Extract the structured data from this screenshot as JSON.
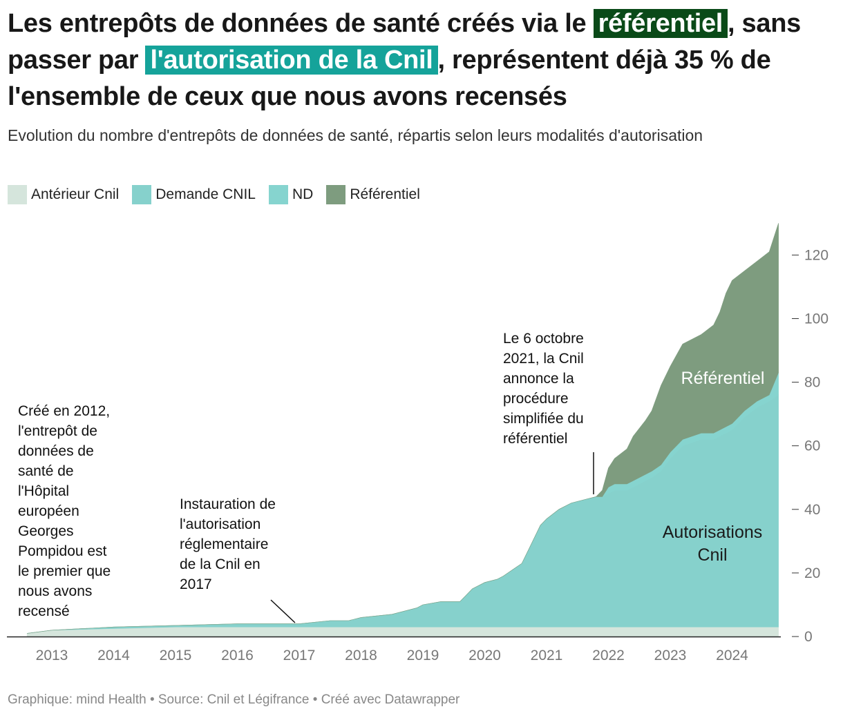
{
  "title": {
    "part1": "Les entrepôts de données de santé créés via le ",
    "hl_ref": "référentiel",
    "part2": ", sans passer par ",
    "hl_cnil": "l'autorisation de la Cnil",
    "part3": ", représentent déjà 35 % de l'ensemble de ceux que nous avons recensés"
  },
  "subtitle": "Evolution du nombre d'entrepôts de données de santé, répartis selon leurs modalités d'autorisation",
  "footer": "Graphique: mind Health • Source: Cnil et Légifrance • Créé avec Datawrapper",
  "colors": {
    "anterieur": "#d5e5dc",
    "demande": "#86d1cc",
    "nd": "#86d4cf",
    "referentiel": "#7e9c7f",
    "hl_ref": "#0a4a18",
    "hl_cnil": "#15a39a"
  },
  "chart_data": {
    "type": "area",
    "stacked": true,
    "legend": [
      "Antérieur Cnil",
      "Demande CNIL",
      "ND",
      "Référentiel"
    ],
    "legend_position": "top-left",
    "x_ticks": [
      "2013",
      "2014",
      "2015",
      "2016",
      "2017",
      "2018",
      "2019",
      "2020",
      "2021",
      "2022",
      "2023",
      "2024"
    ],
    "y_ticks": [
      0,
      20,
      40,
      60,
      80,
      100,
      120
    ],
    "ylim": [
      0,
      130
    ],
    "y_axis_position": "right",
    "grid": false,
    "x": [
      2012.6,
      2013.0,
      2014.0,
      2015.0,
      2016.0,
      2017.0,
      2017.5,
      2017.8,
      2018.0,
      2018.5,
      2018.9,
      2019.0,
      2019.3,
      2019.5,
      2019.6,
      2019.7,
      2019.8,
      2020.0,
      2020.2,
      2020.3,
      2020.45,
      2020.6,
      2020.7,
      2020.9,
      2021.0,
      2021.2,
      2021.4,
      2021.6,
      2021.8,
      2021.9,
      2022.0,
      2022.1,
      2022.3,
      2022.4,
      2022.6,
      2022.7,
      2022.85,
      2023.0,
      2023.2,
      2023.5,
      2023.7,
      2023.8,
      2023.9,
      2024.0,
      2024.2,
      2024.4,
      2024.6,
      2024.75
    ],
    "series": [
      {
        "name": "Antérieur Cnil",
        "values": [
          1,
          2,
          2.5,
          3,
          3,
          3,
          3,
          3,
          3,
          3,
          3,
          3,
          3,
          3,
          3,
          3,
          3,
          3,
          3,
          3,
          3,
          3,
          3,
          3,
          3,
          3,
          3,
          3,
          3,
          3,
          3,
          3,
          3,
          3,
          3,
          3,
          3,
          3,
          3,
          3,
          3,
          3,
          3,
          3,
          3,
          3,
          3,
          3
        ]
      },
      {
        "name": "Demande CNIL",
        "values": [
          0,
          0,
          0.5,
          0.5,
          1,
          1,
          2,
          2,
          3,
          4,
          6,
          7,
          8,
          8,
          8,
          10,
          12,
          14,
          15,
          16,
          18,
          20,
          24,
          32,
          34,
          37,
          39,
          40,
          41,
          41,
          42,
          43,
          43,
          44,
          46,
          47,
          49,
          53,
          57,
          59,
          59,
          60,
          61,
          62,
          66,
          69,
          71,
          73
        ]
      },
      {
        "name": "ND",
        "values": [
          0,
          0,
          0,
          0,
          0,
          0,
          0,
          0,
          0,
          0,
          0,
          0,
          0,
          0,
          0,
          0,
          0,
          0,
          0,
          0,
          0,
          0,
          0,
          0,
          0,
          0,
          0,
          0,
          0,
          0,
          2,
          2,
          2,
          2,
          2,
          2,
          2,
          2,
          2,
          2,
          2,
          2,
          2,
          2,
          2,
          2,
          2,
          7
        ]
      },
      {
        "name": "Référentiel",
        "values": [
          0,
          0,
          0,
          0,
          0,
          0,
          0,
          0,
          0,
          0,
          0,
          0,
          0,
          0,
          0,
          0,
          0,
          0,
          0,
          0,
          0,
          0,
          0,
          0,
          0,
          0,
          0,
          0,
          0,
          2,
          6,
          8,
          11,
          14,
          17,
          19,
          25,
          27,
          30,
          31,
          34,
          37,
          42,
          45,
          44,
          44,
          45,
          47
        ]
      }
    ],
    "area_labels": {
      "referentiel": "Référentiel",
      "cnil": [
        "Autorisations",
        "Cnil"
      ]
    },
    "annotations": [
      {
        "text": [
          "Créé en 2012,",
          "l'entrepôt de",
          "données de",
          "santé de",
          "l'Hôpital",
          "européen",
          "Georges",
          "Pompidou est",
          "le premier que",
          "nous avons",
          "recensé"
        ]
      },
      {
        "text": [
          "Instauration de",
          "l'autorisation",
          "réglementaire",
          "de la Cnil en",
          "2017"
        ]
      },
      {
        "text": [
          "Le 6 octobre",
          "2021, la Cnil",
          "annonce la",
          "procédure",
          "simplifiée du",
          "référentiel"
        ]
      }
    ]
  }
}
